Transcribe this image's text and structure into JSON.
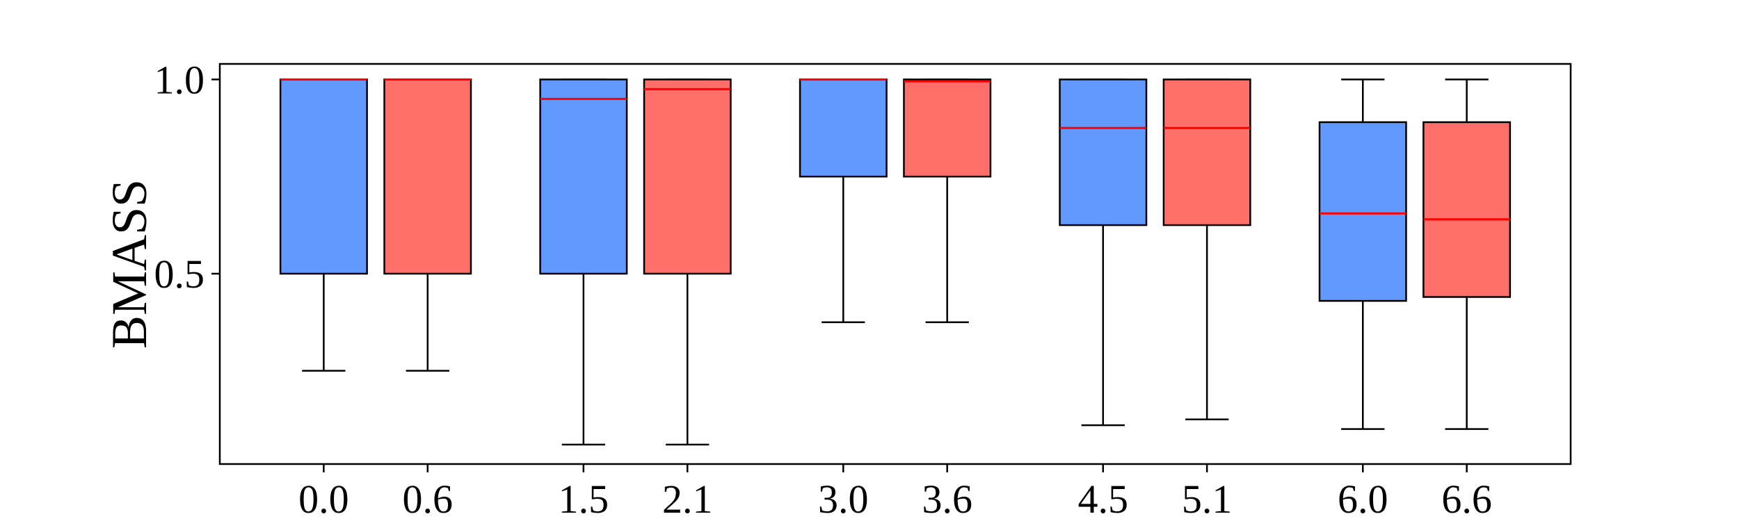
{
  "chart_data": {
    "type": "box",
    "ylabel": "BMASS",
    "xlabel": "",
    "ylim": [
      0.01,
      1.04
    ],
    "yticks": [
      0.5,
      1.0
    ],
    "ytick_labels": [
      "0.5",
      "1.0"
    ],
    "grid": false,
    "legend": "none",
    "boxes": [
      {
        "label": "0.0",
        "x": 0.0,
        "whislo": 0.25,
        "q1": 0.5,
        "med": 1.0,
        "q3": 1.0,
        "whishi": 1.0,
        "color": "#6199fe"
      },
      {
        "label": "0.6",
        "x": 0.6,
        "whislo": 0.25,
        "q1": 0.5,
        "med": 1.0,
        "q3": 1.0,
        "whishi": 1.0,
        "color": "#fe6f69"
      },
      {
        "label": "1.5",
        "x": 1.5,
        "whislo": 0.06,
        "q1": 0.5,
        "med": 0.95,
        "q3": 1.0,
        "whishi": 1.0,
        "color": "#6199fe"
      },
      {
        "label": "2.1",
        "x": 2.1,
        "whislo": 0.06,
        "q1": 0.5,
        "med": 0.975,
        "q3": 1.0,
        "whishi": 1.0,
        "color": "#fe6f69"
      },
      {
        "label": "3.0",
        "x": 3.0,
        "whislo": 0.375,
        "q1": 0.75,
        "med": 1.0,
        "q3": 1.0,
        "whishi": 1.0,
        "color": "#6199fe"
      },
      {
        "label": "3.6",
        "x": 3.6,
        "whislo": 0.375,
        "q1": 0.75,
        "med": 0.995,
        "q3": 1.0,
        "whishi": 1.0,
        "color": "#fe6f69"
      },
      {
        "label": "4.5",
        "x": 4.5,
        "whislo": 0.11,
        "q1": 0.625,
        "med": 0.875,
        "q3": 1.0,
        "whishi": 1.0,
        "color": "#6199fe"
      },
      {
        "label": "5.1",
        "x": 5.1,
        "whislo": 0.125,
        "q1": 0.625,
        "med": 0.875,
        "q3": 1.0,
        "whishi": 1.0,
        "color": "#fe6f69"
      },
      {
        "label": "6.0",
        "x": 6.0,
        "whislo": 0.1,
        "q1": 0.43,
        "med": 0.655,
        "q3": 0.89,
        "whishi": 1.0,
        "color": "#6199fe"
      },
      {
        "label": "6.6",
        "x": 6.6,
        "whislo": 0.1,
        "q1": 0.44,
        "med": 0.64,
        "q3": 0.89,
        "whishi": 1.0,
        "color": "#fe6f69"
      }
    ],
    "median_color": "#ff0000",
    "line_color": "#000000"
  }
}
